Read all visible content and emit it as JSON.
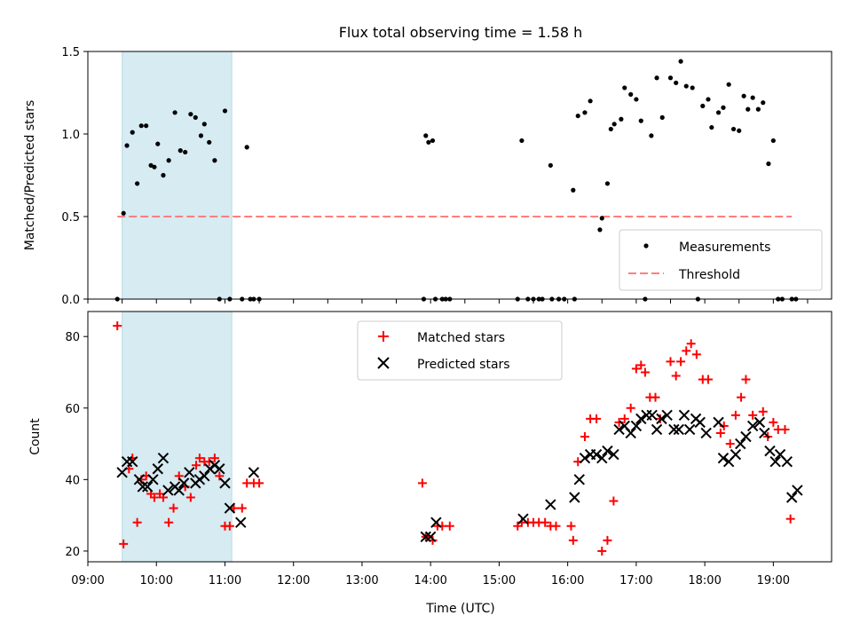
{
  "chart_data": {
    "title": "Flux total observing time = 1.58 h",
    "xlabel": "Time (UTC)",
    "x_ticks": [
      "09:00",
      "10:00",
      "11:00",
      "12:00",
      "13:00",
      "14:00",
      "15:00",
      "16:00",
      "17:00",
      "18:00",
      "19:00"
    ],
    "x_range_hours": [
      9.0,
      19.85
    ],
    "shaded_interval_hours": [
      9.5,
      11.1
    ],
    "panels": [
      {
        "type": "scatter",
        "ylabel": "Matched/Predicted stars",
        "ylim": [
          0,
          1.5
        ],
        "y_ticks": [
          "0.0",
          "0.5",
          "1.0",
          "1.5"
        ],
        "legend_location": "lower-right",
        "series": [
          {
            "name": "Measurements",
            "marker": "dot",
            "color": "#000000",
            "x": [
              9.43,
              9.52,
              9.57,
              9.65,
              9.72,
              9.78,
              9.85,
              9.92,
              9.97,
              10.02,
              10.1,
              10.18,
              10.27,
              10.35,
              10.42,
              10.5,
              10.57,
              10.65,
              10.7,
              10.77,
              10.85,
              10.92,
              11.0,
              11.07,
              11.25,
              11.32,
              11.42,
              11.5,
              11.37,
              13.93,
              13.97,
              14.03,
              14.07,
              13.9,
              14.17,
              14.22,
              14.28,
              15.27,
              15.33,
              15.42,
              15.5,
              15.58,
              15.63,
              15.75,
              15.77,
              15.87,
              15.95,
              16.08,
              16.1,
              16.15,
              16.25,
              16.33,
              16.47,
              16.5,
              16.58,
              16.63,
              16.68,
              16.78,
              16.83,
              16.92,
              17.0,
              17.07,
              17.13,
              17.22,
              17.3,
              17.38,
              17.5,
              17.58,
              17.65,
              17.73,
              17.82,
              17.9,
              17.97,
              18.05,
              18.1,
              18.2,
              18.27,
              18.35,
              18.42,
              18.5,
              18.57,
              18.63,
              18.7,
              18.78,
              18.85,
              18.93,
              19.0,
              19.07,
              19.13,
              19.27,
              19.33
            ],
            "y": [
              0.0,
              0.52,
              0.93,
              1.01,
              0.7,
              1.05,
              1.05,
              0.81,
              0.8,
              0.94,
              0.75,
              0.84,
              1.13,
              0.9,
              0.89,
              1.12,
              1.1,
              0.99,
              1.06,
              0.95,
              0.84,
              0.0,
              1.14,
              0.0,
              0.0,
              0.92,
              0.0,
              0.0,
              0.0,
              0.99,
              0.95,
              0.96,
              0.0,
              0.0,
              0.0,
              0.0,
              0.0,
              0.0,
              0.96,
              0.0,
              0.0,
              0.0,
              0.0,
              0.81,
              0.0,
              0.0,
              0.0,
              0.66,
              0.0,
              1.11,
              1.13,
              1.2,
              0.42,
              0.49,
              0.7,
              1.03,
              1.06,
              1.09,
              1.28,
              1.24,
              1.21,
              1.08,
              0.0,
              0.99,
              1.34,
              1.1,
              1.34,
              1.31,
              1.44,
              1.29,
              1.28,
              0.0,
              1.17,
              1.21,
              1.04,
              1.13,
              1.16,
              1.3,
              1.03,
              1.02,
              1.23,
              1.15,
              1.22,
              1.15,
              1.19,
              0.82,
              0.96,
              0.0,
              0.0,
              0.0,
              0.0
            ]
          },
          {
            "name": "Threshold",
            "marker": "dashed-line",
            "color": "#ff7f7f",
            "x": [
              9.43,
              19.27
            ],
            "y": [
              0.5,
              0.5
            ]
          }
        ]
      },
      {
        "type": "scatter",
        "ylabel": "Count",
        "ylim": [
          17,
          87
        ],
        "y_ticks": [
          "20",
          "40",
          "60",
          "80"
        ],
        "legend_location": "top-center",
        "series": [
          {
            "name": "Matched stars",
            "marker": "plus",
            "color": "#ff0000",
            "x": [
              9.43,
              9.52,
              9.6,
              9.65,
              9.72,
              9.78,
              9.85,
              9.92,
              9.97,
              10.05,
              10.1,
              10.18,
              10.25,
              10.33,
              10.42,
              10.5,
              10.58,
              10.63,
              10.7,
              10.77,
              10.85,
              10.92,
              11.0,
              11.07,
              11.13,
              11.25,
              11.32,
              11.42,
              11.5,
              13.88,
              13.93,
              14.03,
              14.1,
              14.17,
              14.28,
              15.27,
              15.33,
              15.42,
              15.5,
              15.58,
              15.67,
              15.75,
              15.83,
              16.05,
              16.08,
              16.15,
              16.25,
              16.33,
              16.42,
              16.5,
              16.58,
              16.67,
              16.75,
              16.83,
              16.92,
              17.0,
              17.07,
              17.13,
              17.2,
              17.28,
              17.35,
              17.5,
              17.58,
              17.65,
              17.73,
              17.8,
              17.88,
              17.97,
              18.05,
              18.23,
              18.28,
              18.37,
              18.45,
              18.53,
              18.6,
              18.7,
              18.85,
              18.92,
              19.0,
              19.07,
              19.17,
              19.25
            ],
            "y": [
              83,
              22,
              43,
              46,
              28,
              40,
              41,
              36,
              35,
              36,
              35,
              28,
              32,
              41,
              38,
              35,
              44,
              46,
              45,
              45,
              46,
              41,
              27,
              27,
              32,
              32,
              39,
              39,
              39,
              39,
              24,
              23,
              27,
              27,
              27,
              27,
              28,
              28,
              28,
              28,
              28,
              27,
              27,
              27,
              23,
              45,
              52,
              57,
              57,
              20,
              23,
              34,
              56,
              57,
              60,
              71,
              72,
              70,
              63,
              63,
              57,
              73,
              69,
              73,
              76,
              78,
              75,
              68,
              68,
              53,
              55,
              50,
              58,
              63,
              68,
              58,
              59,
              52,
              56,
              54,
              54,
              29
            ]
          },
          {
            "name": "Predicted stars",
            "marker": "x",
            "color": "#000000",
            "x": [
              9.5,
              9.57,
              9.65,
              9.75,
              9.8,
              9.87,
              9.95,
              10.02,
              10.1,
              10.17,
              10.27,
              10.33,
              10.4,
              10.48,
              10.57,
              10.63,
              10.7,
              10.78,
              10.85,
              10.92,
              11.0,
              11.07,
              11.23,
              11.42,
              13.93,
              14.0,
              14.08,
              15.35,
              15.75,
              16.1,
              16.17,
              16.25,
              16.33,
              16.42,
              16.5,
              16.58,
              16.67,
              16.75,
              16.83,
              16.92,
              17.0,
              17.07,
              17.15,
              17.23,
              17.3,
              17.37,
              17.45,
              17.55,
              17.62,
              17.7,
              17.78,
              17.87,
              17.93,
              18.02,
              18.2,
              18.27,
              18.35,
              18.45,
              18.52,
              18.6,
              18.7,
              18.8,
              18.87,
              18.95,
              19.03,
              19.1,
              19.2,
              19.27,
              19.35
            ],
            "y": [
              42,
              45,
              45,
              40,
              38,
              38,
              40,
              43,
              46,
              37,
              38,
              37,
              39,
              42,
              39,
              40,
              41,
              43,
              44,
              43,
              39,
              32,
              28,
              42,
              24,
              24,
              28,
              29,
              33,
              35,
              40,
              46,
              47,
              47,
              46,
              48,
              47,
              54,
              55,
              53,
              55,
              57,
              58,
              58,
              54,
              57,
              58,
              54,
              54,
              58,
              54,
              57,
              56,
              53,
              56,
              46,
              45,
              47,
              50,
              52,
              55,
              56,
              53,
              48,
              45,
              47,
              45,
              35,
              37
            ]
          }
        ]
      }
    ]
  }
}
